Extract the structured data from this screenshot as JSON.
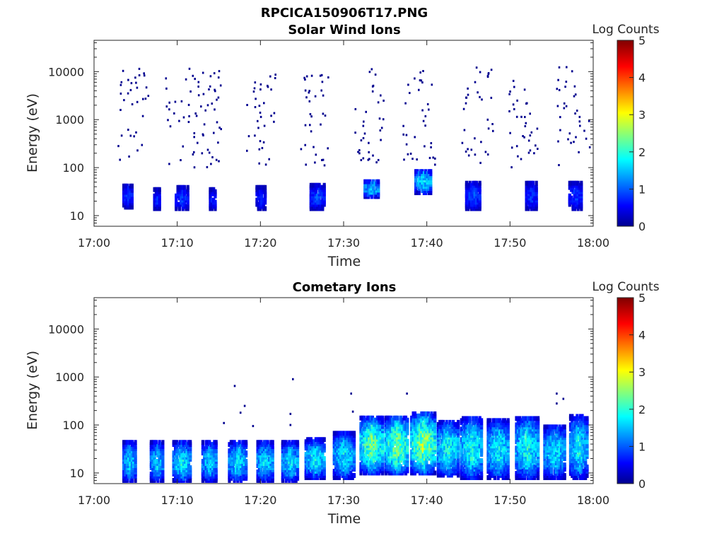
{
  "figure_title": "RPCICA150906T17.PNG",
  "chart_data": [
    {
      "type": "heatmap",
      "title": "Solar Wind Ions",
      "xlabel": "Time",
      "ylabel": "Energy (eV)",
      "x_ticks": [
        "17:00",
        "17:10",
        "17:20",
        "17:30",
        "17:40",
        "17:50",
        "18:00"
      ],
      "x_range_minutes": [
        0,
        60
      ],
      "y_scale": "log",
      "y_ticks": [
        "10",
        "100",
        "1000",
        "10000"
      ],
      "y_range_eV": [
        6,
        45000
      ],
      "colorbar": {
        "label": "Log Counts",
        "ticks": [
          "0",
          "1",
          "2",
          "3",
          "4",
          "5"
        ],
        "range": [
          0,
          5
        ],
        "colormap": "jet"
      },
      "bursts": [
        {
          "t": 4.0,
          "w": 1.2,
          "e_lo": 15,
          "e_hi": 45,
          "peak": 0.9
        },
        {
          "t": 7.5,
          "w": 0.8,
          "e_lo": 14,
          "e_hi": 35,
          "peak": 0.8
        },
        {
          "t": 10.5,
          "w": 1.6,
          "e_lo": 14,
          "e_hi": 40,
          "peak": 0.9
        },
        {
          "t": 14.2,
          "w": 0.8,
          "e_lo": 14,
          "e_hi": 35,
          "peak": 0.8
        },
        {
          "t": 20.0,
          "w": 1.2,
          "e_lo": 14,
          "e_hi": 40,
          "peak": 0.8
        },
        {
          "t": 26.8,
          "w": 1.8,
          "e_lo": 14,
          "e_hi": 45,
          "peak": 1.0
        },
        {
          "t": 33.3,
          "w": 1.8,
          "e_lo": 25,
          "e_hi": 55,
          "peak": 1.7
        },
        {
          "t": 39.5,
          "w": 2.0,
          "e_lo": 30,
          "e_hi": 90,
          "peak": 1.8
        },
        {
          "t": 45.5,
          "w": 1.8,
          "e_lo": 14,
          "e_hi": 50,
          "peak": 1.0
        },
        {
          "t": 52.5,
          "w": 1.4,
          "e_lo": 14,
          "e_hi": 50,
          "peak": 0.9
        },
        {
          "t": 57.8,
          "w": 1.6,
          "e_lo": 14,
          "e_hi": 50,
          "peak": 0.9
        }
      ],
      "scatter_groups": [
        {
          "t": 4.5,
          "w": 4.0
        },
        {
          "t": 10.5,
          "w": 4.0
        },
        {
          "t": 14.0,
          "w": 2.5
        },
        {
          "t": 20.0,
          "w": 3.5
        },
        {
          "t": 26.5,
          "w": 3.5
        },
        {
          "t": 33.0,
          "w": 3.5
        },
        {
          "t": 39.0,
          "w": 4.0
        },
        {
          "t": 46.0,
          "w": 4.0
        },
        {
          "t": 51.5,
          "w": 3.5
        },
        {
          "t": 57.5,
          "w": 4.0
        }
      ]
    },
    {
      "type": "heatmap",
      "title": "Cometary Ions",
      "xlabel": "Time",
      "ylabel": "Energy (eV)",
      "x_ticks": [
        "17:00",
        "17:10",
        "17:20",
        "17:30",
        "17:40",
        "17:50",
        "18:00"
      ],
      "x_range_minutes": [
        0,
        60
      ],
      "y_scale": "log",
      "y_ticks": [
        "10",
        "100",
        "1000",
        "10000"
      ],
      "y_range_eV": [
        6,
        45000
      ],
      "colorbar": {
        "label": "Log Counts",
        "ticks": [
          "0",
          "1",
          "2",
          "3",
          "4",
          "5"
        ],
        "range": [
          0,
          5
        ],
        "colormap": "jet"
      },
      "bursts": [
        {
          "t": 4.2,
          "w": 1.6,
          "e_lo": 7,
          "e_hi": 45,
          "peak": 1.7
        },
        {
          "t": 7.5,
          "w": 1.6,
          "e_lo": 7,
          "e_hi": 45,
          "peak": 1.7
        },
        {
          "t": 10.5,
          "w": 2.2,
          "e_lo": 7,
          "e_hi": 45,
          "peak": 1.9
        },
        {
          "t": 13.8,
          "w": 1.8,
          "e_lo": 7,
          "e_hi": 45,
          "peak": 1.7
        },
        {
          "t": 17.2,
          "w": 2.2,
          "e_lo": 7,
          "e_hi": 45,
          "peak": 1.8
        },
        {
          "t": 20.5,
          "w": 2.0,
          "e_lo": 7,
          "e_hi": 45,
          "peak": 1.8
        },
        {
          "t": 23.5,
          "w": 2.0,
          "e_lo": 7,
          "e_hi": 45,
          "peak": 1.8
        },
        {
          "t": 26.5,
          "w": 2.4,
          "e_lo": 8,
          "e_hi": 50,
          "peak": 1.9
        },
        {
          "t": 30.0,
          "w": 2.6,
          "e_lo": 8,
          "e_hi": 70,
          "peak": 1.8
        },
        {
          "t": 33.3,
          "w": 2.8,
          "e_lo": 10,
          "e_hi": 150,
          "peak": 2.4
        },
        {
          "t": 36.3,
          "w": 2.8,
          "e_lo": 10,
          "e_hi": 150,
          "peak": 2.5
        },
        {
          "t": 39.5,
          "w": 3.0,
          "e_lo": 10,
          "e_hi": 180,
          "peak": 2.6
        },
        {
          "t": 42.5,
          "w": 2.6,
          "e_lo": 9,
          "e_hi": 120,
          "peak": 2.0
        },
        {
          "t": 45.3,
          "w": 2.6,
          "e_lo": 8,
          "e_hi": 150,
          "peak": 2.0
        },
        {
          "t": 48.5,
          "w": 2.6,
          "e_lo": 8,
          "e_hi": 130,
          "peak": 1.9
        },
        {
          "t": 52.0,
          "w": 2.8,
          "e_lo": 8,
          "e_hi": 150,
          "peak": 2.0
        },
        {
          "t": 55.3,
          "w": 2.6,
          "e_lo": 8,
          "e_hi": 100,
          "peak": 1.8
        },
        {
          "t": 58.2,
          "w": 2.2,
          "e_lo": 8,
          "e_hi": 160,
          "peak": 1.9
        }
      ],
      "isolated_points": [
        {
          "t": 16.8,
          "e": 650
        },
        {
          "t": 17.5,
          "e": 180
        },
        {
          "t": 18.0,
          "e": 250
        },
        {
          "t": 15.5,
          "e": 110
        },
        {
          "t": 19.0,
          "e": 95
        },
        {
          "t": 23.8,
          "e": 900
        },
        {
          "t": 23.5,
          "e": 170
        },
        {
          "t": 23.5,
          "e": 100
        },
        {
          "t": 30.8,
          "e": 450
        },
        {
          "t": 31.0,
          "e": 190
        },
        {
          "t": 37.5,
          "e": 450
        },
        {
          "t": 55.5,
          "e": 450
        },
        {
          "t": 56.3,
          "e": 350
        },
        {
          "t": 55.5,
          "e": 280
        }
      ]
    }
  ]
}
